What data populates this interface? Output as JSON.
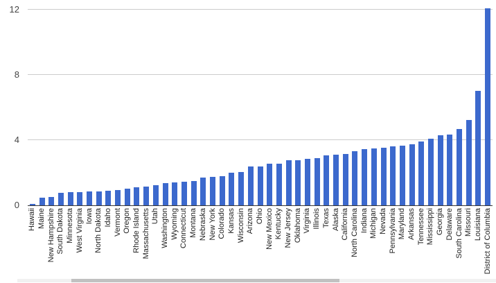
{
  "chart_data": {
    "type": "bar",
    "title": "",
    "xlabel": "",
    "ylabel": "",
    "ylim": [
      0,
      12
    ],
    "yticks": [
      0,
      4,
      8,
      12
    ],
    "grid": true,
    "legend": false,
    "bar_color": "#3c69cd",
    "categories": [
      "Hawaii",
      "Maine",
      "New Hampshire",
      "South Dakota",
      "Minnesota",
      "West Virginia",
      "Iowa",
      "North Dakota",
      "Idaho",
      "Vermont",
      "Oregon",
      "Rhode Island",
      "Massachusetts",
      "Utah",
      "Washington",
      "Wyoming",
      "Connecticut",
      "Montana",
      "Nebraska",
      "New York",
      "Colorado",
      "Kansas",
      "Wisconsin",
      "Arizona",
      "Ohio",
      "New Mexico",
      "Kentucky",
      "New Jersey",
      "Oklahoma",
      "Virginia",
      "Illinois",
      "Texas",
      "Alaska",
      "California",
      "North Carolina",
      "Indiana",
      "Michigan",
      "Nevada",
      "Pennsylvania",
      "Maryland",
      "Arkansas",
      "Tennessee",
      "Mississippi",
      "Georgia",
      "Delaware",
      "South Carolina",
      "Missouri",
      "Louisiana",
      "District of Columbia"
    ],
    "values": [
      0.1,
      0.45,
      0.5,
      0.75,
      0.8,
      0.8,
      0.85,
      0.85,
      0.9,
      0.95,
      1.0,
      1.1,
      1.15,
      1.25,
      1.35,
      1.4,
      1.45,
      1.5,
      1.7,
      1.75,
      1.8,
      2.0,
      2.05,
      2.4,
      2.4,
      2.55,
      2.55,
      2.75,
      2.75,
      2.85,
      2.9,
      3.05,
      3.1,
      3.15,
      3.3,
      3.45,
      3.5,
      3.55,
      3.6,
      3.65,
      3.75,
      3.9,
      4.1,
      4.3,
      4.35,
      4.7,
      5.25,
      7.0,
      12.1
    ]
  },
  "colors": {
    "bar": "#3c69cd",
    "gridline": "#cccccc",
    "axis_line": "#333333",
    "y_tick_label": "#444444",
    "x_tick_label": "#222222",
    "scrollbar_track": "#f1f1f1",
    "scrollbar_thumb": "#c1c1c1",
    "background": "#ffffff"
  }
}
